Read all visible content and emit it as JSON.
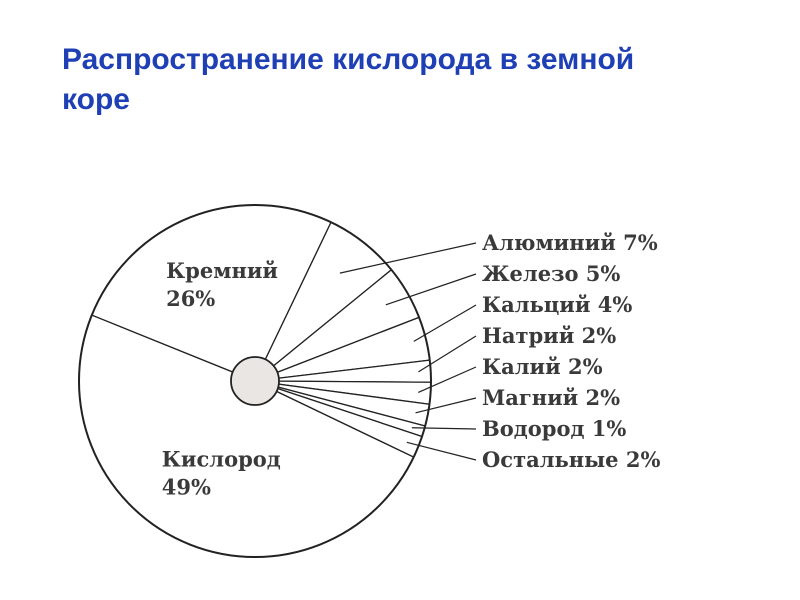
{
  "title": "Распространение кислорода в земной коре",
  "colors": {
    "title": "#1f3fb5",
    "stroke": "#222222",
    "hub": "#e9e6e3"
  },
  "chart_data": {
    "type": "pie",
    "title": "Распространение кислорода в земной коре",
    "unit": "%",
    "slices": [
      {
        "name": "Кислород",
        "value": 49,
        "label": "Кислород",
        "value_label": "49%",
        "placement": "inside"
      },
      {
        "name": "Кремний",
        "value": 26,
        "label": "Кремний",
        "value_label": "26%",
        "placement": "inside"
      },
      {
        "name": "Алюминий",
        "value": 7,
        "label": "Алюминий 7%",
        "placement": "callout"
      },
      {
        "name": "Железо",
        "value": 5,
        "label": "Железо 5%",
        "placement": "callout"
      },
      {
        "name": "Кальций",
        "value": 4,
        "label": "Кальций 4%",
        "placement": "callout"
      },
      {
        "name": "Натрий",
        "value": 2,
        "label": "Натрий 2%",
        "placement": "callout"
      },
      {
        "name": "Калий",
        "value": 2,
        "label": "Калий 2%",
        "placement": "callout"
      },
      {
        "name": "Магний",
        "value": 2,
        "label": "Магний 2%",
        "placement": "callout"
      },
      {
        "name": "Водород",
        "value": 1,
        "label": "Водород 1%",
        "placement": "callout"
      },
      {
        "name": "Остальные",
        "value": 2,
        "label": "Остальные 2%",
        "placement": "callout"
      }
    ]
  }
}
